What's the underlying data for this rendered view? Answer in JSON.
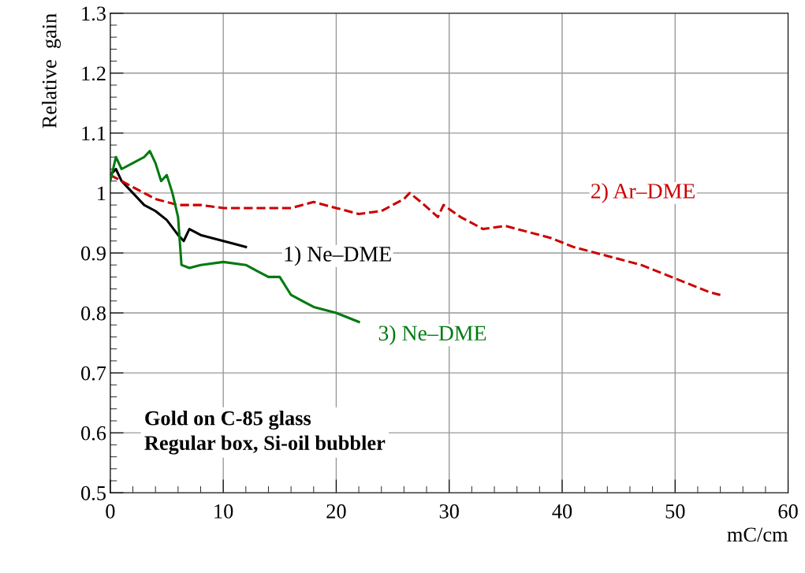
{
  "chart_data": {
    "type": "line",
    "xlabel": "mC/cm",
    "ylabel": "Relative  gain",
    "xlim": [
      0,
      60
    ],
    "xticks": [
      0,
      10,
      20,
      30,
      40,
      50,
      60
    ],
    "ylim": [
      0.5,
      1.3
    ],
    "yticks": [
      0.5,
      0.6,
      0.7,
      0.8,
      0.9,
      {
        "value": 1.0,
        "label": "1"
      },
      1.1,
      1.2,
      1.3
    ],
    "grid": true,
    "marker": "none",
    "series": [
      {
        "name": "1) Ne–DME",
        "color": "#000000",
        "line_style": "solid",
        "x": [
          0,
          0.5,
          1,
          2,
          3,
          4,
          5,
          6,
          6.5,
          7,
          8,
          9,
          10,
          11,
          12
        ],
        "values": [
          1.03,
          1.04,
          1.02,
          1.0,
          0.98,
          0.97,
          0.955,
          0.93,
          0.92,
          0.94,
          0.93,
          0.925,
          0.92,
          0.915,
          0.91
        ]
      },
      {
        "name": "2) Ar–DME",
        "color": "#cc0000",
        "line_style": "dashed",
        "x": [
          0,
          2,
          4,
          6,
          8,
          10,
          12,
          14,
          16,
          18,
          20,
          22,
          24,
          26,
          26.5,
          27.5,
          29,
          29.5,
          31,
          33,
          35,
          37,
          39,
          41,
          43,
          45,
          47,
          49,
          51,
          53,
          54
        ],
        "values": [
          1.03,
          1.01,
          0.99,
          0.98,
          0.98,
          0.975,
          0.975,
          0.975,
          0.975,
          0.985,
          0.975,
          0.965,
          0.97,
          0.99,
          1.0,
          0.985,
          0.96,
          0.98,
          0.96,
          0.94,
          0.945,
          0.935,
          0.925,
          0.91,
          0.9,
          0.89,
          0.88,
          0.865,
          0.85,
          0.835,
          0.83
        ]
      },
      {
        "name": "3) Ne–DME",
        "color": "#007a10",
        "line_style": "solid",
        "x": [
          0,
          0.5,
          1,
          2,
          3,
          3.5,
          4,
          4.5,
          5,
          5.5,
          6,
          6.3,
          7,
          8,
          10,
          12,
          13,
          14,
          15,
          16,
          17,
          18,
          20,
          22
        ],
        "values": [
          1.02,
          1.06,
          1.04,
          1.05,
          1.06,
          1.07,
          1.05,
          1.02,
          1.03,
          1.0,
          0.96,
          0.88,
          0.875,
          0.88,
          0.885,
          0.88,
          0.87,
          0.86,
          0.86,
          0.83,
          0.82,
          0.81,
          0.8,
          0.785
        ]
      }
    ],
    "annotations": [
      "Gold on C-85 glass\nRegular box, Si-oil bubbler"
    ]
  }
}
